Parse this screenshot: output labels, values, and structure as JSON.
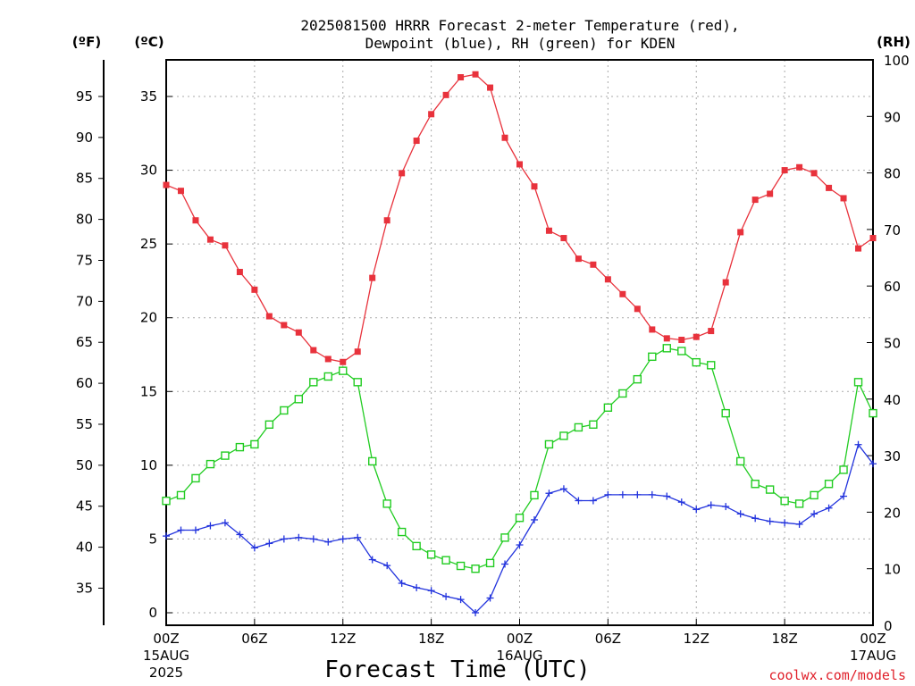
{
  "chart_data": {
    "type": "line",
    "title_line1": "2025081500 HRRR Forecast 2-meter Temperature (red),",
    "title_line2": "Dewpoint (blue), RH (green) for KDEN",
    "unit_f": "(ºF)",
    "unit_c": "(ºC)",
    "unit_rh": "(RH)",
    "xlabel": "Forecast Time (UTC)",
    "credit": "coolwx.com/models",
    "x_hours": [
      0,
      1,
      2,
      3,
      4,
      5,
      6,
      7,
      8,
      9,
      10,
      11,
      12,
      13,
      14,
      15,
      16,
      17,
      18,
      19,
      20,
      21,
      22,
      23,
      24,
      25,
      26,
      27,
      28,
      29,
      30,
      31,
      32,
      33,
      34,
      35,
      36,
      37,
      38,
      39,
      40,
      41,
      42,
      43,
      44,
      45,
      46,
      47,
      48
    ],
    "x_range": [
      0,
      48
    ],
    "x_ticks": [
      {
        "hour": 0,
        "lines": [
          "00Z",
          "15AUG",
          "2025"
        ]
      },
      {
        "hour": 6,
        "lines": [
          "06Z"
        ]
      },
      {
        "hour": 12,
        "lines": [
          "12Z"
        ]
      },
      {
        "hour": 18,
        "lines": [
          "18Z"
        ]
      },
      {
        "hour": 24,
        "lines": [
          "00Z",
          "16AUG"
        ]
      },
      {
        "hour": 30,
        "lines": [
          "06Z"
        ]
      },
      {
        "hour": 36,
        "lines": [
          "12Z"
        ]
      },
      {
        "hour": 42,
        "lines": [
          "18Z"
        ]
      },
      {
        "hour": 48,
        "lines": [
          "00Z",
          "17AUG"
        ]
      }
    ],
    "celsius_range": [
      -0.8,
      37.5
    ],
    "celsius_ticks": [
      0,
      5,
      10,
      15,
      20,
      25,
      30,
      35
    ],
    "fahrenheit_ticks": [
      35,
      40,
      45,
      50,
      55,
      60,
      65,
      70,
      75,
      80,
      85,
      90,
      95
    ],
    "rh_range": [
      0,
      100
    ],
    "rh_ticks": [
      0,
      10,
      20,
      30,
      40,
      50,
      60,
      70,
      80,
      90,
      100
    ],
    "grid": true,
    "series": [
      {
        "name": "Temperature",
        "axis": "celsius",
        "color": "#e8323c",
        "marker": "filled-square",
        "values": [
          29.0,
          28.6,
          26.6,
          25.3,
          24.9,
          23.1,
          21.9,
          20.1,
          19.5,
          19.0,
          17.8,
          17.2,
          17.0,
          17.7,
          22.7,
          26.6,
          29.8,
          32.0,
          33.8,
          35.1,
          36.3,
          36.5,
          35.6,
          32.2,
          30.4,
          28.9,
          25.9,
          25.4,
          24.0,
          23.6,
          22.6,
          21.6,
          20.6,
          19.2,
          18.6,
          18.5,
          18.7,
          19.1,
          22.4,
          25.8,
          28.0,
          28.4,
          30.0,
          30.2,
          29.8,
          28.8,
          28.1,
          24.7,
          25.4
        ]
      },
      {
        "name": "Dewpoint",
        "axis": "celsius",
        "color": "#2233dd",
        "marker": "plus",
        "values": [
          5.2,
          5.6,
          5.6,
          5.9,
          6.1,
          5.3,
          4.4,
          4.7,
          5.0,
          5.1,
          5.0,
          4.8,
          5.0,
          5.1,
          3.6,
          3.2,
          2.0,
          1.7,
          1.5,
          1.1,
          0.9,
          0.0,
          1.0,
          3.3,
          4.6,
          6.3,
          8.1,
          8.4,
          7.6,
          7.6,
          8.0,
          8.0,
          8.0,
          8.0,
          7.9,
          7.5,
          7.0,
          7.3,
          7.2,
          6.7,
          6.4,
          6.2,
          6.1,
          6.0,
          6.7,
          7.1,
          7.9,
          11.4,
          10.1
        ]
      },
      {
        "name": "RH",
        "axis": "rh",
        "color": "#22cc22",
        "marker": "open-square",
        "values": [
          22,
          23,
          26,
          28.5,
          30,
          31.5,
          32,
          35.5,
          38,
          40,
          43,
          44,
          45,
          43,
          29,
          21.5,
          16.5,
          14,
          12.5,
          11.5,
          10.5,
          10,
          11,
          15.5,
          19,
          23,
          32,
          33.5,
          35,
          35.5,
          38.5,
          41,
          43.5,
          47.5,
          49,
          48.5,
          46.5,
          46,
          37.5,
          29,
          25,
          24,
          22,
          21.5,
          23,
          25,
          27.5,
          43,
          37.5
        ]
      }
    ]
  }
}
